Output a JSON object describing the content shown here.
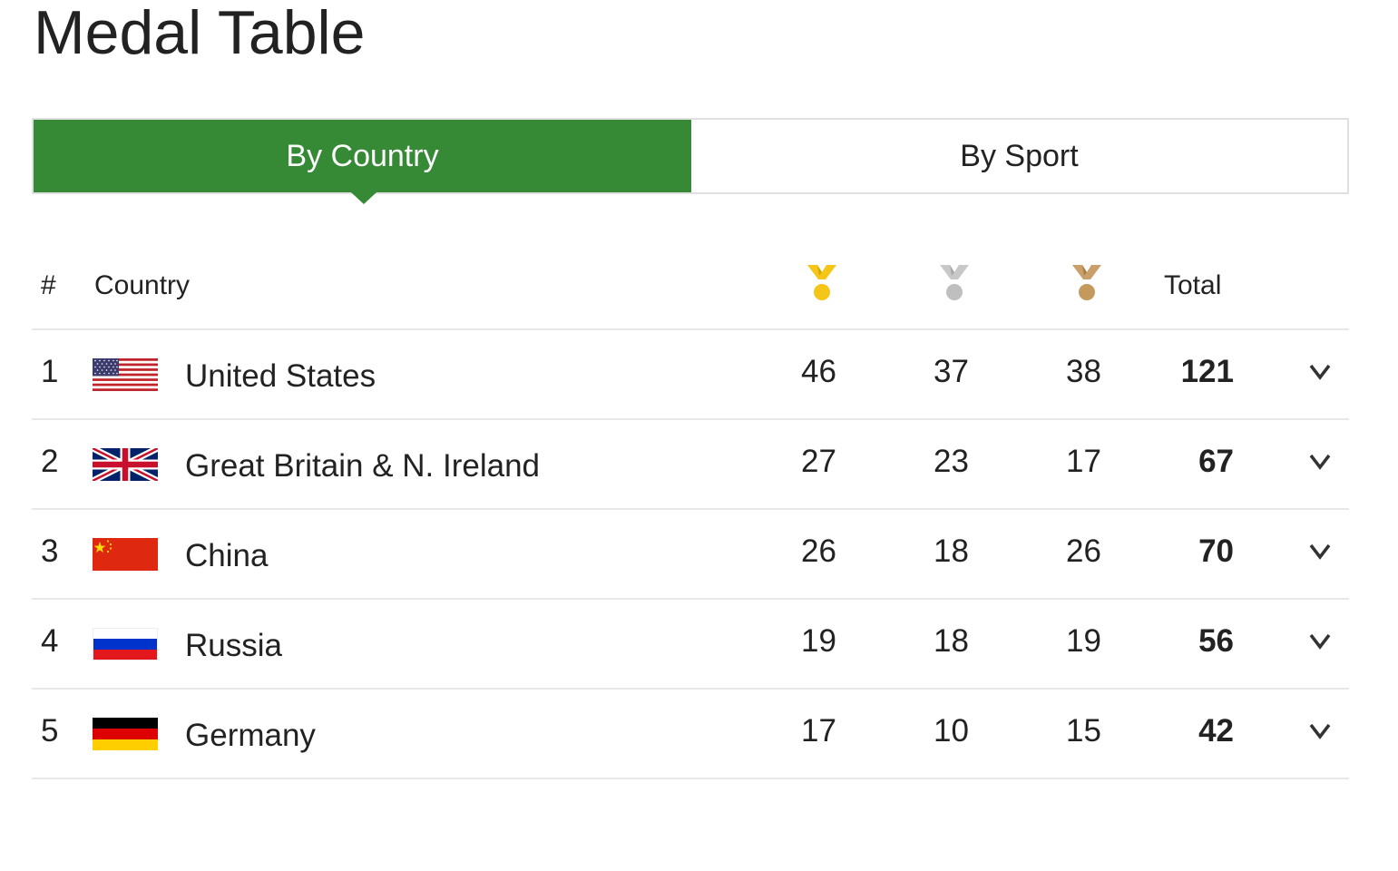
{
  "page": {
    "title": "Medal Table"
  },
  "tabs": [
    {
      "label": "By Country",
      "active": true
    },
    {
      "label": "By Sport",
      "active": false
    }
  ],
  "table": {
    "headers": {
      "rank": "#",
      "country": "Country",
      "gold_icon": "gold-medal-icon",
      "silver_icon": "silver-medal-icon",
      "bronze_icon": "bronze-medal-icon",
      "total": "Total"
    },
    "rows": [
      {
        "rank": "1",
        "flag": "us-flag-icon",
        "country": "United States",
        "gold": "46",
        "silver": "37",
        "bronze": "38",
        "total": "121"
      },
      {
        "rank": "2",
        "flag": "gb-flag-icon",
        "country": "Great Britain & N. Ireland",
        "gold": "27",
        "silver": "23",
        "bronze": "17",
        "total": "67"
      },
      {
        "rank": "3",
        "flag": "cn-flag-icon",
        "country": "China",
        "gold": "26",
        "silver": "18",
        "bronze": "26",
        "total": "70"
      },
      {
        "rank": "4",
        "flag": "ru-flag-icon",
        "country": "Russia",
        "gold": "19",
        "silver": "18",
        "bronze": "19",
        "total": "56"
      },
      {
        "rank": "5",
        "flag": "de-flag-icon",
        "country": "Germany",
        "gold": "17",
        "silver": "10",
        "bronze": "15",
        "total": "42"
      }
    ]
  },
  "colors": {
    "active_tab": "#368a36",
    "gold": "#f5c518",
    "silver": "#bfbfbf",
    "bronze": "#c49a5c"
  }
}
